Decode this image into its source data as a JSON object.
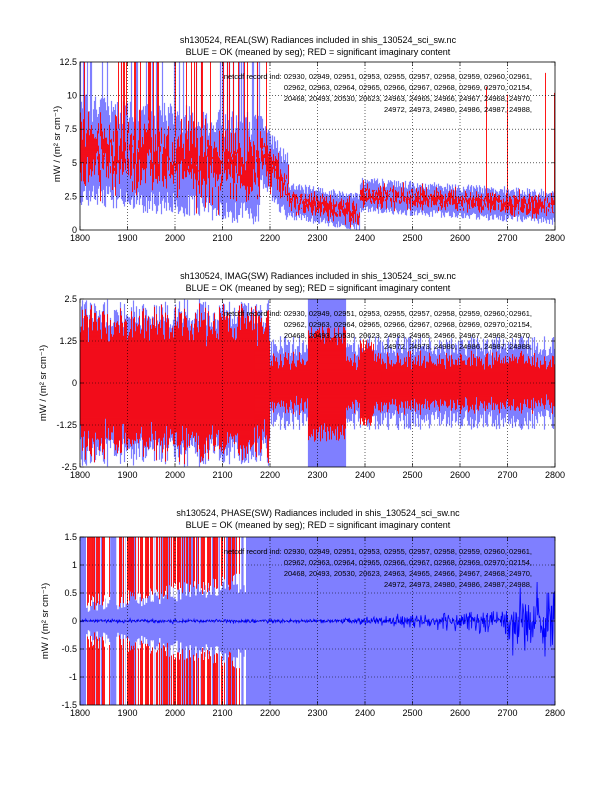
{
  "chart_data": [
    {
      "type": "line",
      "title_lines": [
        "sh130524, REAL(SW) Radiances included in shis_130524_sci_sw.nc",
        "BLUE = OK (meaned by seg); RED = significant imaginary content"
      ],
      "ylabel": "mW / (m² sr cm⁻¹)",
      "xlabel": "",
      "xlim": [
        1800,
        2800
      ],
      "ylim": [
        0,
        12.5
      ],
      "xticks": [
        1800,
        1900,
        2000,
        2100,
        2200,
        2300,
        2400,
        2500,
        2600,
        2700,
        2800
      ],
      "yticks": [
        0,
        2.5,
        5,
        7.5,
        10,
        12.5
      ],
      "ytick_labels": [
        "0",
        "2.5",
        "5",
        "7.5",
        "10",
        "12.5"
      ],
      "grid": true,
      "series": [
        {
          "name": "BLUE = OK (meaned by seg)",
          "color": "#7f7fff"
        },
        {
          "name": "RED = significant imaginary content",
          "color": "#ff0000"
        }
      ],
      "annotation_lines": [
        "netcdf record ind: 02930, 02949, 02951, 02953, 02955, 02957, 02958, 02959, 02960, 02961,",
        "02962, 02963, 02964, 02965, 02966, 02967, 02968, 02969, 02970, 02154,",
        "20468, 20493, 20530, 20623, 24963, 24965, 24966, 24967, 24968, 24970,",
        "24972, 24973, 24980, 24986, 24987, 24988,"
      ]
    },
    {
      "type": "line",
      "title_lines": [
        "sh130524, IMAG(SW) Radiances included in shis_130524_sci_sw.nc",
        "BLUE = OK (meaned by seg); RED = significant imaginary content"
      ],
      "ylabel": "mW / (m² sr cm⁻¹)",
      "xlabel": "",
      "xlim": [
        1800,
        2800
      ],
      "ylim": [
        -2.5,
        2.5
      ],
      "xticks": [
        1800,
        1900,
        2000,
        2100,
        2200,
        2300,
        2400,
        2500,
        2600,
        2700,
        2800
      ],
      "yticks": [
        -2.5,
        -1.25,
        0,
        1.25,
        2.5
      ],
      "ytick_labels": [
        "-2.5",
        "-1.25",
        "0",
        "1.25",
        "2.5"
      ],
      "grid": true,
      "series": [
        {
          "name": "BLUE = OK (meaned by seg)",
          "color": "#7f7fff"
        },
        {
          "name": "RED = significant imaginary content",
          "color": "#ff0000"
        }
      ],
      "annotation_lines": [
        "netcdf record ind: 02930, 02949, 02951, 02953, 02955, 02957, 02958, 02959, 02960, 02961,",
        "02962, 02963, 02964, 02965, 02966, 02967, 02968, 02969, 02970, 02154,",
        "20468, 20493, 20530, 20623, 24963, 24965, 24966, 24967, 24968, 24970,",
        "24972, 24973, 24980, 24986, 24987, 24988,"
      ]
    },
    {
      "type": "line",
      "title_lines": [
        "sh130524, PHASE(SW) Radiances included in shis_130524_sci_sw.nc",
        "BLUE = OK (meaned by seg); RED = significant imaginary content"
      ],
      "ylabel": "mW / (m² sr cm⁻¹)",
      "xlabel": "",
      "xlim": [
        1800,
        2800
      ],
      "ylim": [
        -1.5,
        1.5
      ],
      "xticks": [
        1800,
        1900,
        2000,
        2100,
        2200,
        2300,
        2400,
        2500,
        2600,
        2700,
        2800
      ],
      "yticks": [
        -1.5,
        -1,
        -0.5,
        0,
        0.5,
        1,
        1.5
      ],
      "ytick_labels": [
        "-1.5",
        "-1",
        "-0.5",
        "0",
        "0.5",
        "1",
        "1.5"
      ],
      "grid": true,
      "series": [
        {
          "name": "BLUE = OK (meaned by seg)",
          "color": "#7f7fff"
        },
        {
          "name": "RED = significant imaginary content",
          "color": "#ff0000"
        },
        {
          "name": "phase mean",
          "color": "#0000ff"
        }
      ],
      "annotation_lines": [
        "netcdf record ind: 02930, 02949, 02951, 02953, 02955, 02957, 02958, 02959, 02960, 02961,",
        "02962, 02963, 02964, 02965, 02966, 02967, 02968, 02969, 02970, 02154,",
        "20468, 20493, 20530, 20623, 24963, 24965, 24966, 24967, 24968, 24970,",
        "24972, 24973, 24980, 24986, 24987, 24988,"
      ]
    }
  ]
}
